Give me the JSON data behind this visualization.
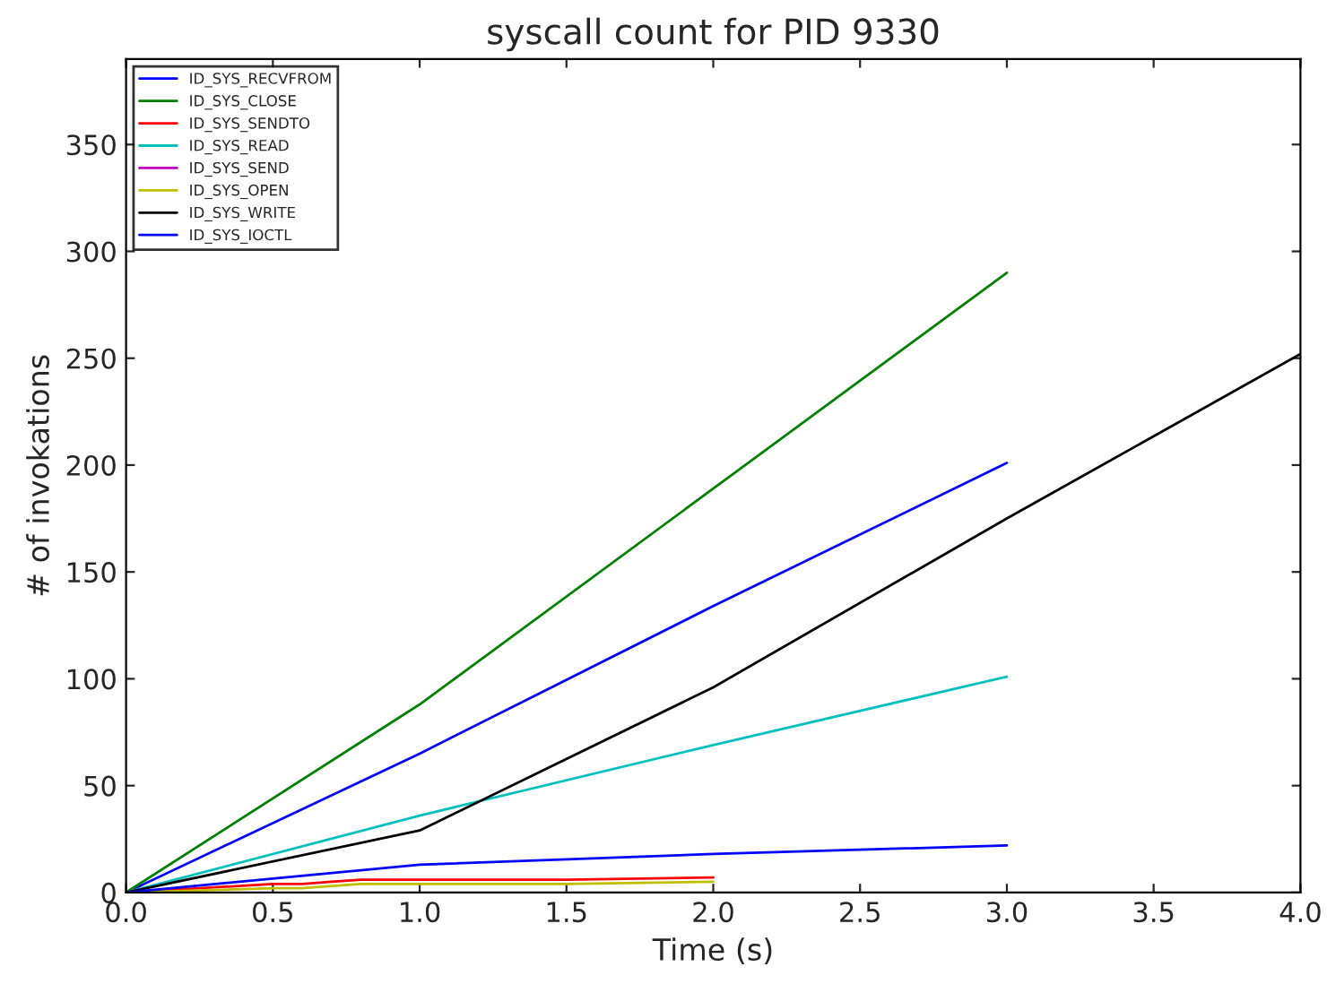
{
  "chart_data": {
    "type": "line",
    "title": "syscall count for PID 9330",
    "xlabel": "Time (s)",
    "ylabel": "# of invokations",
    "xlim": [
      0,
      4
    ],
    "xticks": [
      {
        "value": 0,
        "label": "0.0"
      },
      {
        "value": 0.5,
        "label": "0.5"
      },
      {
        "value": 1,
        "label": "1.0"
      },
      {
        "value": 1.5,
        "label": "1.5"
      },
      {
        "value": 2,
        "label": "2.0"
      },
      {
        "value": 2.5,
        "label": "2.5"
      },
      {
        "value": 3,
        "label": "3.0"
      },
      {
        "value": 3.5,
        "label": "3.5"
      },
      {
        "value": 4,
        "label": "4.0"
      }
    ],
    "ylim": [
      0,
      390
    ],
    "yticks": [
      0,
      50,
      100,
      150,
      200,
      250,
      300,
      350
    ],
    "grid": false,
    "legend": "top left",
    "series": [
      {
        "name": "ID_SYS_RECVFROM",
        "color": "#0000ff",
        "x": [
          0,
          1,
          2,
          3
        ],
        "values": [
          0,
          65,
          134,
          201
        ]
      },
      {
        "name": "ID_SYS_CLOSE",
        "color": "#008000",
        "x": [
          0,
          1,
          2,
          3
        ],
        "values": [
          0,
          88,
          189,
          290
        ]
      },
      {
        "name": "ID_SYS_SENDTO",
        "color": "#ff0000",
        "x": [
          0,
          0.5,
          0.6,
          0.7,
          0.8,
          1,
          1.5,
          2
        ],
        "values": [
          0,
          4,
          4,
          5,
          6,
          6,
          6,
          7
        ]
      },
      {
        "name": "ID_SYS_READ",
        "color": "#00bfbf",
        "x": [
          0,
          1,
          2,
          3
        ],
        "values": [
          0,
          36,
          69,
          101
        ]
      },
      {
        "name": "ID_SYS_SEND",
        "color": "#bf00bf"
      },
      {
        "name": "ID_SYS_OPEN",
        "color": "#bfbf00",
        "x": [
          0,
          0.5,
          0.6,
          0.7,
          0.8,
          1,
          1.5,
          2
        ],
        "values": [
          0,
          2,
          2,
          3,
          4,
          4,
          4,
          5
        ]
      },
      {
        "name": "ID_SYS_WRITE",
        "color": "#000000",
        "x": [
          0,
          1,
          2,
          3,
          4
        ],
        "values": [
          0,
          29,
          96,
          175,
          252
        ]
      },
      {
        "name": "ID_SYS_IOCTL",
        "color": "#0000ff",
        "x": [
          0,
          1,
          2,
          3
        ],
        "values": [
          0,
          13,
          18,
          22
        ]
      }
    ]
  }
}
